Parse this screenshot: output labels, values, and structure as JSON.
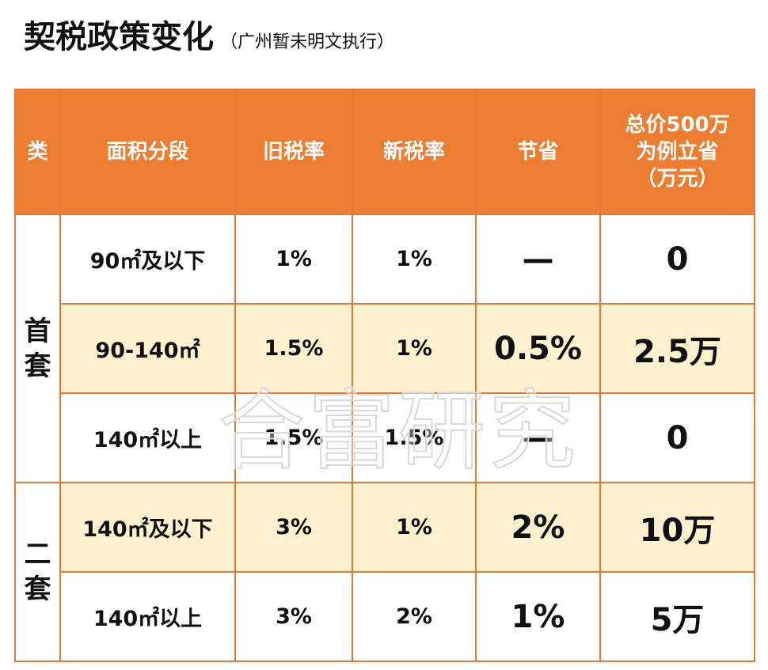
{
  "header": {
    "title": "契税政策变化",
    "subtitle": "（广州暂未明文执行）"
  },
  "table": {
    "columns": [
      [
        "类"
      ],
      [
        "面积分段"
      ],
      [
        "旧税率"
      ],
      [
        "新税率"
      ],
      [
        "节省"
      ],
      [
        "总价500万",
        "为例立省",
        "（万元）"
      ]
    ],
    "groups": [
      {
        "label": "首套",
        "rows": [
          [
            "90㎡及以下",
            "1%",
            "1%",
            "—",
            "0"
          ],
          [
            "90-140㎡",
            "1.5%",
            "1%",
            "0.5%",
            "2.5万"
          ],
          [
            "140㎡以上",
            "1.5%",
            "1.5%",
            "—",
            "0"
          ]
        ]
      },
      {
        "label": "二套",
        "rows": [
          [
            "140㎡及以下",
            "3%",
            "1%",
            "2%",
            "10万"
          ],
          [
            "140㎡以上",
            "3%",
            "2%",
            "1%",
            "5万"
          ]
        ]
      }
    ]
  },
  "watermark": "合富研究"
}
